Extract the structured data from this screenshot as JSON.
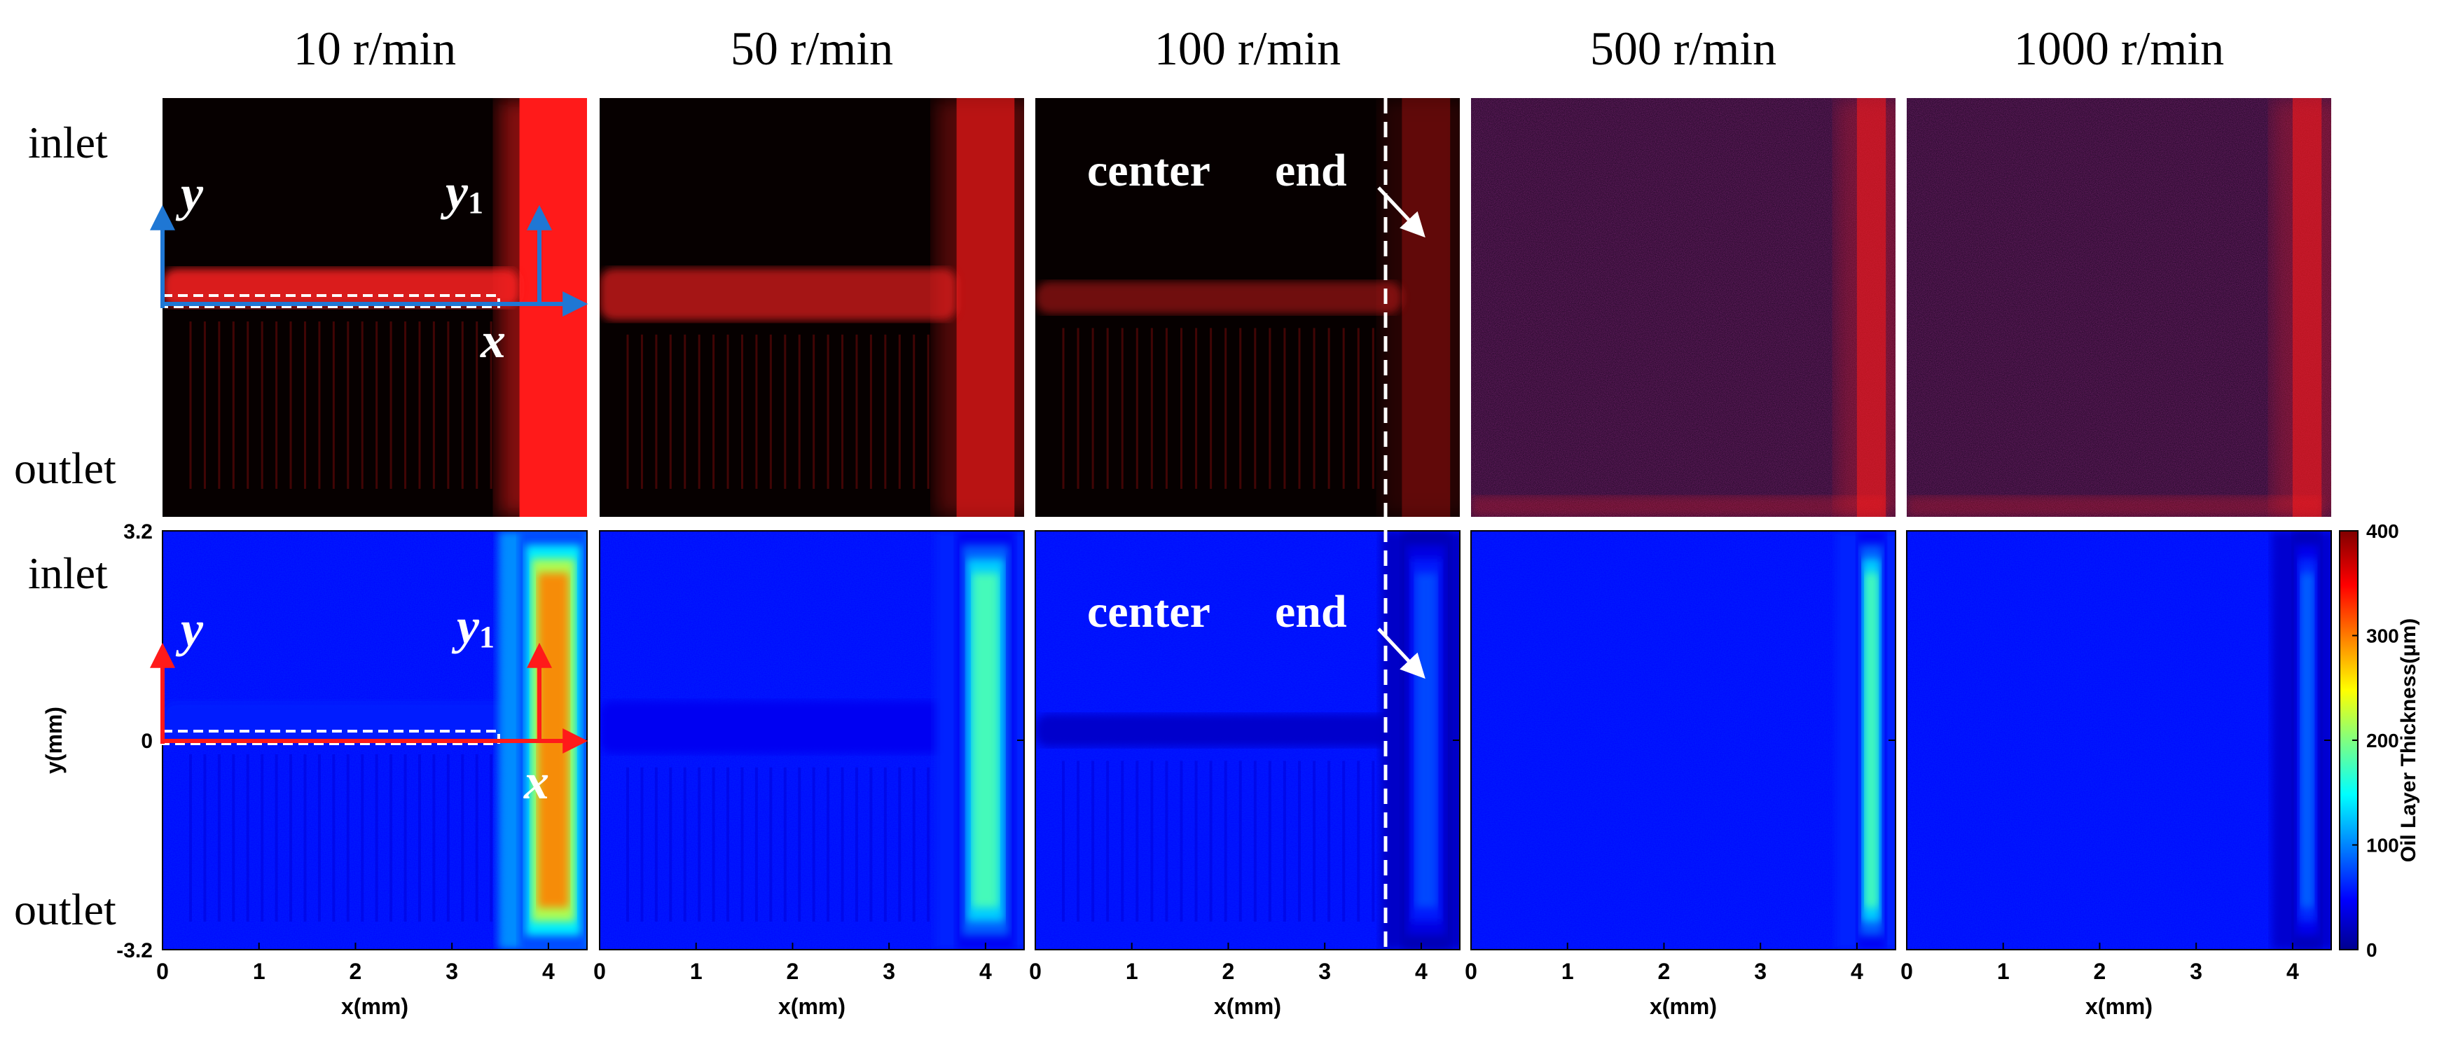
{
  "figure": {
    "panel_titles": [
      "10 r/min",
      "50 r/min",
      "100 r/min",
      "500 r/min",
      "1000 r/min"
    ],
    "row_labels": {
      "inlet": "inlet",
      "outlet": "outlet"
    },
    "annotations": {
      "y": "y",
      "y1_base": "y",
      "y1_sub": "1",
      "x": "x",
      "center": "center",
      "end": "end"
    },
    "colors": {
      "fluorescence": "#ff1a1a",
      "background_dark": "#050000",
      "thickness_low": "#00008f",
      "thickness_high": "#800000",
      "axis_arrow_top": "#1f77d4",
      "axis_arrow_bottom": "#ff1a1a"
    }
  },
  "chart_data": {
    "type": "heatmap",
    "title": "",
    "xlabel": "x(mm)",
    "ylabel": "y(mm)",
    "xlim": [
      0,
      4.4
    ],
    "ylim": [
      -3.2,
      3.2
    ],
    "x_ticks": [
      "0",
      "1",
      "2",
      "3",
      "4"
    ],
    "y_ticks": [
      "3.2",
      "0",
      "-3.2"
    ],
    "colorbar": {
      "label": "Oil Layer Thickness(μm)",
      "min": 0,
      "max": 400,
      "ticks": [
        "0",
        "100",
        "200",
        "300",
        "400"
      ],
      "colormap": "jet"
    },
    "center_line_x_mm": 3.6,
    "panels": [
      {
        "speed": "10 r/min",
        "end_band_x_mm": [
          3.7,
          4.4
        ],
        "end_peak_um": 300,
        "stripe_band_y_mm": [
          0.6,
          0
        ],
        "stripe_um": 60
      },
      {
        "speed": "50 r/min",
        "end_band_x_mm": [
          3.7,
          4.3
        ],
        "end_peak_um": 180,
        "stripe_band_y_mm": [
          0.6,
          -0.2
        ],
        "stripe_um": 45
      },
      {
        "speed": "100 r/min",
        "end_band_x_mm": [
          3.8,
          4.3
        ],
        "end_peak_um": 80,
        "stripe_band_y_mm": [
          0.4,
          -0.1
        ],
        "stripe_um": 30
      },
      {
        "speed": "500 r/min",
        "end_band_x_mm": [
          4.0,
          4.3
        ],
        "end_peak_um": 180,
        "stripe_band_y_mm": null,
        "stripe_um": 10
      },
      {
        "speed": "1000 r/min",
        "end_band_x_mm": [
          4.0,
          4.3
        ],
        "end_peak_um": 90,
        "stripe_band_y_mm": null,
        "stripe_um": 8
      }
    ]
  }
}
